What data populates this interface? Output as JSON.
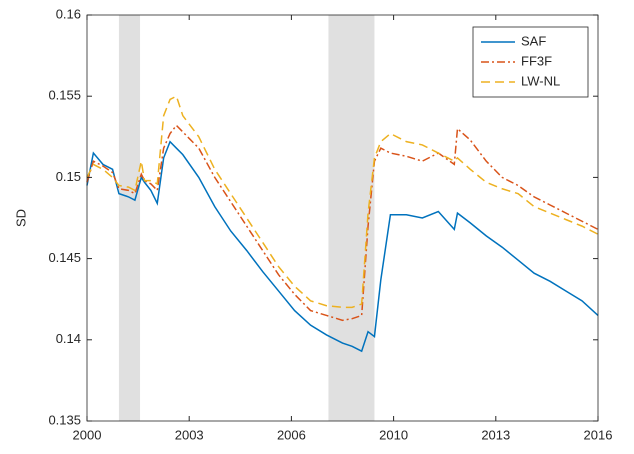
{
  "chart_data": {
    "type": "line",
    "y_label": "SD",
    "x": [
      2000,
      2000.2,
      2000.5,
      2000.8,
      2001.0,
      2001.3,
      2001.5,
      2001.7,
      2001.8,
      2002.0,
      2002.2,
      2002.4,
      2002.6,
      2002.8,
      2003.0,
      2003.5,
      2004,
      2004.5,
      2005,
      2005.5,
      2006,
      2006.5,
      2007,
      2007.5,
      2008,
      2008.3,
      2008.6,
      2008.8,
      2009.0,
      2009.2,
      2009.5,
      2010,
      2010.5,
      2011,
      2011.5,
      2011.6,
      2012,
      2012.5,
      2013,
      2013.5,
      2014,
      2014.5,
      2015,
      2015.5,
      2016
    ],
    "series": [
      {
        "name": "SAF",
        "color": "#0072bd",
        "dash": "none",
        "values": [
          0.1495,
          0.1515,
          0.1508,
          0.1505,
          0.149,
          0.1488,
          0.1486,
          0.15,
          0.1497,
          0.1492,
          0.1484,
          0.1512,
          0.1522,
          0.1518,
          0.1514,
          0.15,
          0.1482,
          0.1467,
          0.1455,
          0.1442,
          0.143,
          0.1418,
          0.1409,
          0.1403,
          0.1398,
          0.1396,
          0.1393,
          0.1405,
          0.1402,
          0.1437,
          0.1477,
          0.1477,
          0.1475,
          0.1479,
          0.1468,
          0.1478,
          0.1472,
          0.1464,
          0.1457,
          0.1449,
          0.1441,
          0.1436,
          0.143,
          0.1424,
          0.1415
        ]
      },
      {
        "name": "FF3F",
        "color": "#d95319",
        "dash": "8 3 2 3",
        "values": [
          0.1497,
          0.151,
          0.1507,
          0.1503,
          0.1493,
          0.1492,
          0.149,
          0.1502,
          0.1498,
          0.1496,
          0.1492,
          0.1518,
          0.1527,
          0.1532,
          0.1528,
          0.1518,
          0.15,
          0.1485,
          0.147,
          0.1455,
          0.144,
          0.1428,
          0.1418,
          0.1415,
          0.1412,
          0.1413,
          0.1415,
          0.147,
          0.151,
          0.1518,
          0.1515,
          0.1513,
          0.151,
          0.1515,
          0.1508,
          0.153,
          0.1523,
          0.151,
          0.15,
          0.1495,
          0.1488,
          0.1483,
          0.1478,
          0.1473,
          0.1468
        ]
      },
      {
        "name": "LW-NL",
        "color": "#edb120",
        "dash": "9 5",
        "values": [
          0.15,
          0.1508,
          0.1505,
          0.15,
          0.1495,
          0.1494,
          0.1492,
          0.151,
          0.1498,
          0.1498,
          0.1496,
          0.1538,
          0.1548,
          0.155,
          0.1538,
          0.1525,
          0.1505,
          0.149,
          0.1475,
          0.146,
          0.1445,
          0.1433,
          0.1424,
          0.1421,
          0.142,
          0.142,
          0.1422,
          0.1478,
          0.1512,
          0.1522,
          0.1527,
          0.1522,
          0.152,
          0.1515,
          0.151,
          0.1512,
          0.1505,
          0.1497,
          0.1493,
          0.149,
          0.1482,
          0.1478,
          0.1474,
          0.147,
          0.1465
        ]
      }
    ],
    "shaded": [
      [
        2001.0,
        2001.66
      ],
      [
        2007.56,
        2009.0
      ]
    ],
    "shade_color": "#e0e0e0",
    "xlim": [
      2000,
      2016
    ],
    "xticks": [
      2000,
      {
        "value": 2003.2,
        "label": "2003"
      },
      {
        "value": 2006.4,
        "label": "2006"
      },
      {
        "value": 2009.6,
        "label": "2010"
      },
      {
        "value": 2012.8,
        "label": "2013"
      },
      2016
    ],
    "ylim": [
      0.135,
      0.16
    ],
    "yticks": [
      0.135,
      0.14,
      0.145,
      0.15,
      0.155,
      0.16
    ],
    "legend": "top-right"
  }
}
